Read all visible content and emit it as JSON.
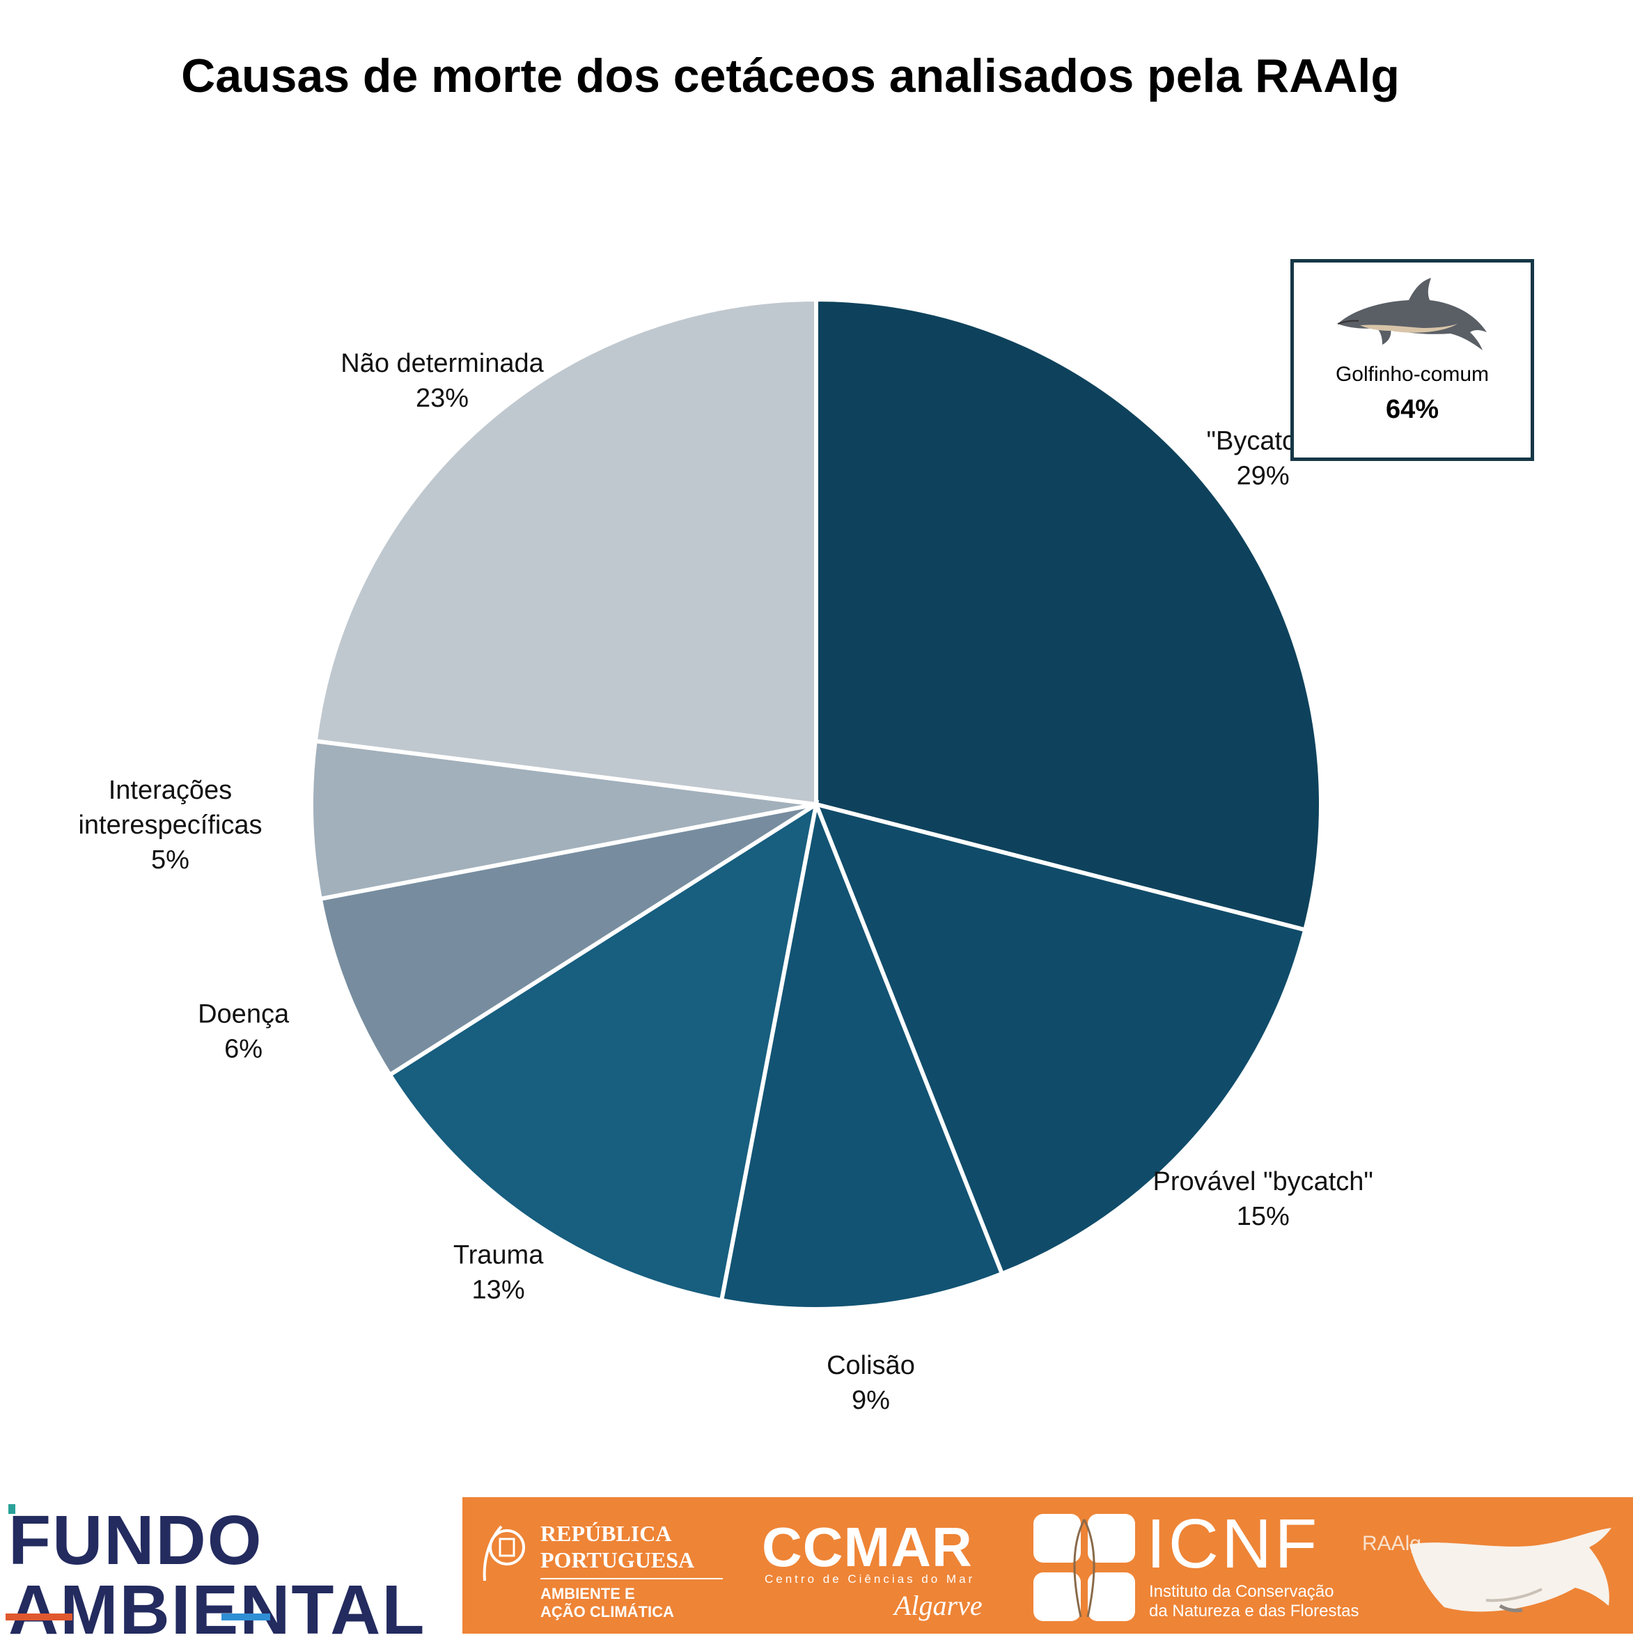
{
  "chart_data": {
    "type": "pie",
    "title": "Causas de morte dos cetáceos analisados pela RAAlg",
    "slices": [
      {
        "label": "\"Bycatch\"",
        "value": 29,
        "display": "29%",
        "color": "#0e425c"
      },
      {
        "label": "Provável \"bycatch\"",
        "value": 15,
        "display": "15%",
        "color": "#104c6a"
      },
      {
        "label": "Colisão",
        "value": 9,
        "display": "9%",
        "color": "#125373"
      },
      {
        "label": "Trauma",
        "value": 13,
        "display": "13%",
        "color": "#175e7f"
      },
      {
        "label": "Doença",
        "value": 6,
        "display": "6%",
        "color": "#778d9f"
      },
      {
        "label": "Interações interespecíficas",
        "label_lines": [
          "Interações",
          "interespecíficas"
        ],
        "value": 5,
        "display": "5%",
        "color": "#a2b0bb"
      },
      {
        "label": "Não determinada",
        "value": 23,
        "display": "23%",
        "color": "#c0c8cf"
      }
    ],
    "start": "12 o'clock",
    "direction": "clockwise"
  },
  "inset": {
    "icon": "dolphin-icon",
    "species": "Golfinho-comum",
    "percent": "64%",
    "border_color": "#163746"
  },
  "footer": {
    "fundo_ambiental": {
      "line1": "FUNDO",
      "line2": "AMBIENTAL",
      "color": "#232b5f"
    },
    "band_color": "#ee8436",
    "republica": {
      "line1": "REPÚBLICA",
      "line2": "PORTUGUESA",
      "line3": "AMBIENTE E",
      "line4": "AÇÃO CLIMÁTICA"
    },
    "ccmar": {
      "name": "CCMAR",
      "subtitle": "Centro de Ciências do Mar",
      "region": "Algarve"
    },
    "icnf": {
      "name": "ICNF",
      "line1": "Instituto da Conservação",
      "line2": "da Natureza e das Florestas"
    },
    "raalg": {
      "name": "RAAlg",
      "icon": "whale-icon"
    }
  }
}
